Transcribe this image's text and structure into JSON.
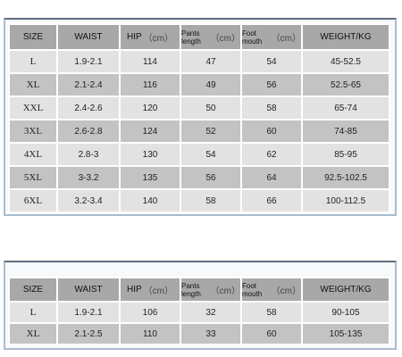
{
  "tables": [
    {
      "header": [
        {
          "text": "SIZE"
        },
        {
          "text": "WAIST"
        },
        {
          "text": "HIP",
          "unit": "（cm）"
        },
        {
          "text": "Pants length",
          "unit": "（cm）"
        },
        {
          "text": "Foot mouth",
          "unit": "（cm）"
        },
        {
          "text": "WEIGHT/KG"
        }
      ],
      "rows": [
        [
          "L",
          "1.9-2.1",
          "114",
          "47",
          "54",
          "45-52.5"
        ],
        [
          "XL",
          "2.1-2.4",
          "116",
          "49",
          "56",
          "52.5-65"
        ],
        [
          "XXL",
          "2.4-2.6",
          "120",
          "50",
          "58",
          "65-74"
        ],
        [
          "3XL",
          "2.6-2.8",
          "124",
          "52",
          "60",
          "74-85"
        ],
        [
          "4XL",
          "2.8-3",
          "130",
          "54",
          "62",
          "85-95"
        ],
        [
          "5XL",
          "3-3.2",
          "135",
          "56",
          "64",
          "92.5-102.5"
        ],
        [
          "6XL",
          "3.2-3.4",
          "140",
          "58",
          "66",
          "100-112.5"
        ]
      ]
    },
    {
      "header": [
        {
          "text": "SIZE"
        },
        {
          "text": "WAIST"
        },
        {
          "text": "HIP",
          "unit": "（cm）"
        },
        {
          "text": "Pants length",
          "unit": "（cm）"
        },
        {
          "text": "Foot mouth",
          "unit": "（cm）"
        },
        {
          "text": "WEIGHT/KG"
        }
      ],
      "rows": [
        [
          "L",
          "1.9-2.1",
          "106",
          "32",
          "58",
          "90-105"
        ],
        [
          "XL",
          "2.1-2.5",
          "110",
          "33",
          "60",
          "105-135"
        ]
      ]
    }
  ]
}
